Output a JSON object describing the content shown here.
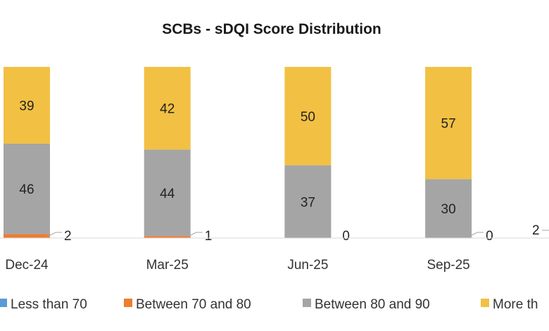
{
  "chart_data": {
    "type": "bar",
    "stacked": true,
    "title": "SCBs - sDQI Score Distribution",
    "categories": [
      "Dec-24",
      "Mar-25",
      "Jun-25",
      "Sep-25"
    ],
    "series": [
      {
        "name": "Less than 70",
        "color": "#5B9BD5",
        "values": [
          0,
          0,
          0,
          0
        ]
      },
      {
        "name": "Between 70 and 80",
        "color": "#ED7D31",
        "values": [
          2,
          1,
          0,
          0
        ]
      },
      {
        "name": "Between 80 and 90",
        "color": "#A5A5A5",
        "values": [
          46,
          44,
          37,
          30
        ]
      },
      {
        "name": "More th",
        "color": "#F2C043",
        "values": [
          39,
          42,
          50,
          57
        ]
      }
    ],
    "partial_next_category_label": "2",
    "legend": "bottom",
    "grid": false,
    "ylim": [
      0,
      87
    ]
  }
}
